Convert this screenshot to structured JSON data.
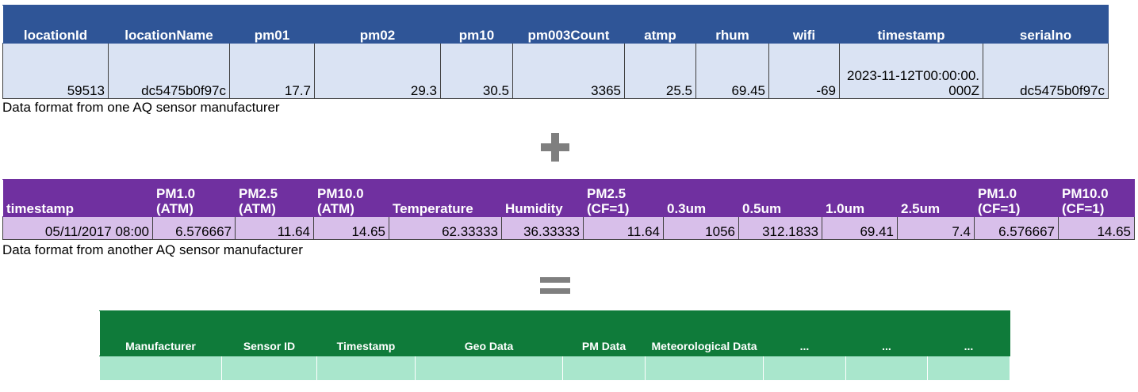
{
  "tables": [
    {
      "headers": [
        "locationId",
        "locationName",
        "pm01",
        "pm02",
        "pm10",
        "pm003Count",
        "atmp",
        "rhum",
        "wifi",
        "timestamp",
        "serialno"
      ],
      "rows": [
        [
          59513,
          "dc5475b0f97c",
          17.7,
          29.3,
          30.5,
          3365,
          25.5,
          69.45,
          -69,
          "2023-11-12T00:00:00.000Z",
          "dc5475b0f97c"
        ]
      ],
      "caption": "Data format from one AQ sensor manufacturer"
    },
    {
      "headers": [
        "timestamp",
        "PM1.0 (ATM)",
        "PM2.5 (ATM)",
        "PM10.0 (ATM)",
        "Temperature",
        "Humidity",
        "PM2.5 (CF=1)",
        "0.3um",
        "0.5um",
        "1.0um",
        "2.5um",
        "PM1.0 (CF=1)",
        "PM10.0 (CF=1)"
      ],
      "rows": [
        [
          "05/11/2017 08:00",
          6.576667,
          11.64,
          14.65,
          62.33333,
          36.33333,
          11.64,
          1056,
          312.1833,
          69.41,
          7.4,
          6.576667,
          14.65
        ]
      ],
      "caption": "Data format from another AQ sensor manufacturer"
    },
    {
      "headers": [
        "Manufacturer",
        "Sensor ID",
        "Timestamp",
        "Geo Data",
        "PM Data",
        "Meteorological Data",
        "...",
        "...",
        "..."
      ]
    }
  ]
}
